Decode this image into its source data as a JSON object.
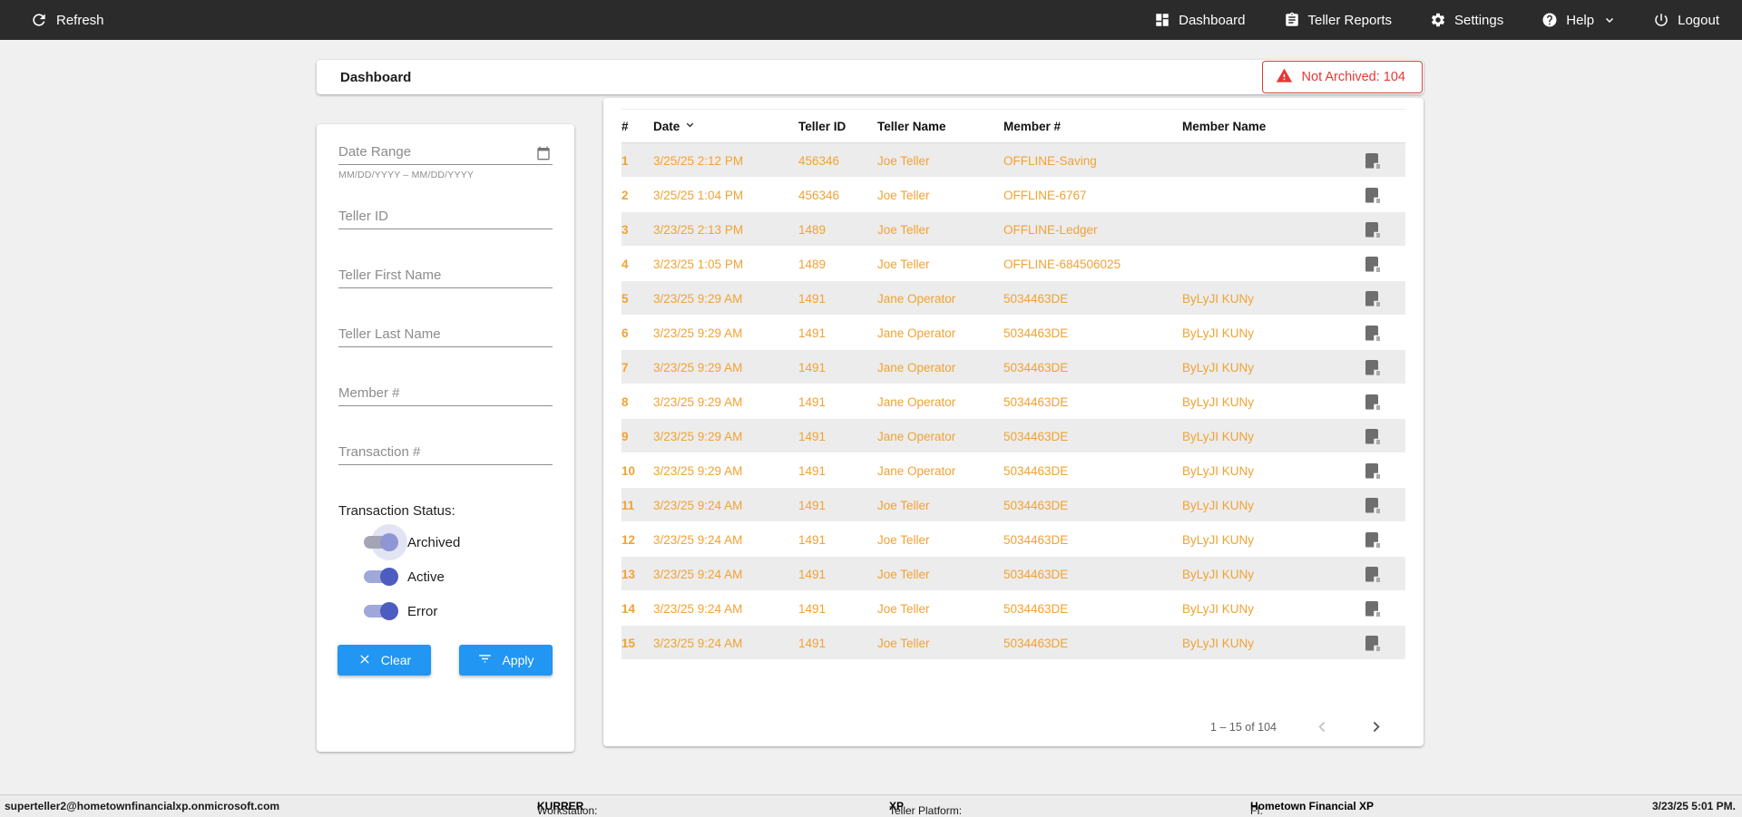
{
  "topbar": {
    "refresh_label": "Refresh",
    "nav": [
      {
        "label": "Dashboard"
      },
      {
        "label": "Teller Reports"
      },
      {
        "label": "Settings"
      },
      {
        "label": "Help"
      },
      {
        "label": "Logout"
      }
    ]
  },
  "header": {
    "title": "Dashboard",
    "not_archived_label": "Not Archived: 104",
    "not_archived_count": 104
  },
  "filters": {
    "date_range_placeholder": "Date Range",
    "date_range_hint": "MM/DD/YYYY – MM/DD/YYYY",
    "fields": [
      {
        "placeholder": "Teller ID"
      },
      {
        "placeholder": "Teller First Name"
      },
      {
        "placeholder": "Teller Last Name"
      },
      {
        "placeholder": "Member #"
      },
      {
        "placeholder": "Transaction #"
      }
    ],
    "status_label": "Transaction Status:",
    "toggles": [
      {
        "label": "Archived",
        "on": true
      },
      {
        "label": "Active",
        "on": true
      },
      {
        "label": "Error",
        "on": true
      }
    ],
    "clear_label": "Clear",
    "apply_label": "Apply"
  },
  "table": {
    "columns": [
      "#",
      "Date",
      "Teller ID",
      "Teller Name",
      "Member #",
      "Member Name"
    ],
    "sorted_by": "Date",
    "sort_direction": "desc",
    "rows": [
      {
        "num": "1",
        "date": "3/25/25 2:12 PM",
        "teller_id": "456346",
        "teller_name": "Joe Teller",
        "member_num": "OFFLINE-Saving",
        "member_name": ""
      },
      {
        "num": "2",
        "date": "3/25/25 1:04 PM",
        "teller_id": "456346",
        "teller_name": "Joe Teller",
        "member_num": "OFFLINE-6767",
        "member_name": ""
      },
      {
        "num": "3",
        "date": "3/23/25 2:13 PM",
        "teller_id": "1489",
        "teller_name": "Joe Teller",
        "member_num": "OFFLINE-Ledger",
        "member_name": ""
      },
      {
        "num": "4",
        "date": "3/23/25 1:05 PM",
        "teller_id": "1489",
        "teller_name": "Joe Teller",
        "member_num": "OFFLINE-684506025",
        "member_name": ""
      },
      {
        "num": "5",
        "date": "3/23/25 9:29 AM",
        "teller_id": "1491",
        "teller_name": "Jane Operator",
        "member_num": "5034463DE",
        "member_name": "ByLyJI KUNy"
      },
      {
        "num": "6",
        "date": "3/23/25 9:29 AM",
        "teller_id": "1491",
        "teller_name": "Jane Operator",
        "member_num": "5034463DE",
        "member_name": "ByLyJI KUNy"
      },
      {
        "num": "7",
        "date": "3/23/25 9:29 AM",
        "teller_id": "1491",
        "teller_name": "Jane Operator",
        "member_num": "5034463DE",
        "member_name": "ByLyJI KUNy"
      },
      {
        "num": "8",
        "date": "3/23/25 9:29 AM",
        "teller_id": "1491",
        "teller_name": "Jane Operator",
        "member_num": "5034463DE",
        "member_name": "ByLyJI KUNy"
      },
      {
        "num": "9",
        "date": "3/23/25 9:29 AM",
        "teller_id": "1491",
        "teller_name": "Jane Operator",
        "member_num": "5034463DE",
        "member_name": "ByLyJI KUNy"
      },
      {
        "num": "10",
        "date": "3/23/25 9:29 AM",
        "teller_id": "1491",
        "teller_name": "Jane Operator",
        "member_num": "5034463DE",
        "member_name": "ByLyJI KUNy"
      },
      {
        "num": "11",
        "date": "3/23/25 9:24 AM",
        "teller_id": "1491",
        "teller_name": "Joe Teller",
        "member_num": "5034463DE",
        "member_name": "ByLyJI KUNy"
      },
      {
        "num": "12",
        "date": "3/23/25 9:24 AM",
        "teller_id": "1491",
        "teller_name": "Joe Teller",
        "member_num": "5034463DE",
        "member_name": "ByLyJI KUNy"
      },
      {
        "num": "13",
        "date": "3/23/25 9:24 AM",
        "teller_id": "1491",
        "teller_name": "Joe Teller",
        "member_num": "5034463DE",
        "member_name": "ByLyJI KUNy"
      },
      {
        "num": "14",
        "date": "3/23/25 9:24 AM",
        "teller_id": "1491",
        "teller_name": "Joe Teller",
        "member_num": "5034463DE",
        "member_name": "ByLyJI KUNy"
      },
      {
        "num": "15",
        "date": "3/23/25 9:24 AM",
        "teller_id": "1491",
        "teller_name": "Joe Teller",
        "member_num": "5034463DE",
        "member_name": "ByLyJI KUNy"
      }
    ],
    "pagination": {
      "range_label": "1 – 15 of 104",
      "prev_enabled": false,
      "next_enabled": true
    }
  },
  "footer": {
    "user": "superteller2@hometownfinancialxp.onmicrosoft.com",
    "workstation_label": "Workstation: ",
    "workstation": "KURRER",
    "platform_label": "Teller Platform: ",
    "platform": "XP",
    "fi_label": "FI: ",
    "fi": "Hometown Financial XP",
    "datetime": "3/23/25 5:01 PM."
  },
  "colors": {
    "nav_bg": "#2b2b2b",
    "row_orange": "#f2a233",
    "alert_red": "#e53935",
    "button_blue": "#2196f3",
    "toggle_indigo": "#4d5cc0",
    "row_alt_gray": "#ececec"
  }
}
